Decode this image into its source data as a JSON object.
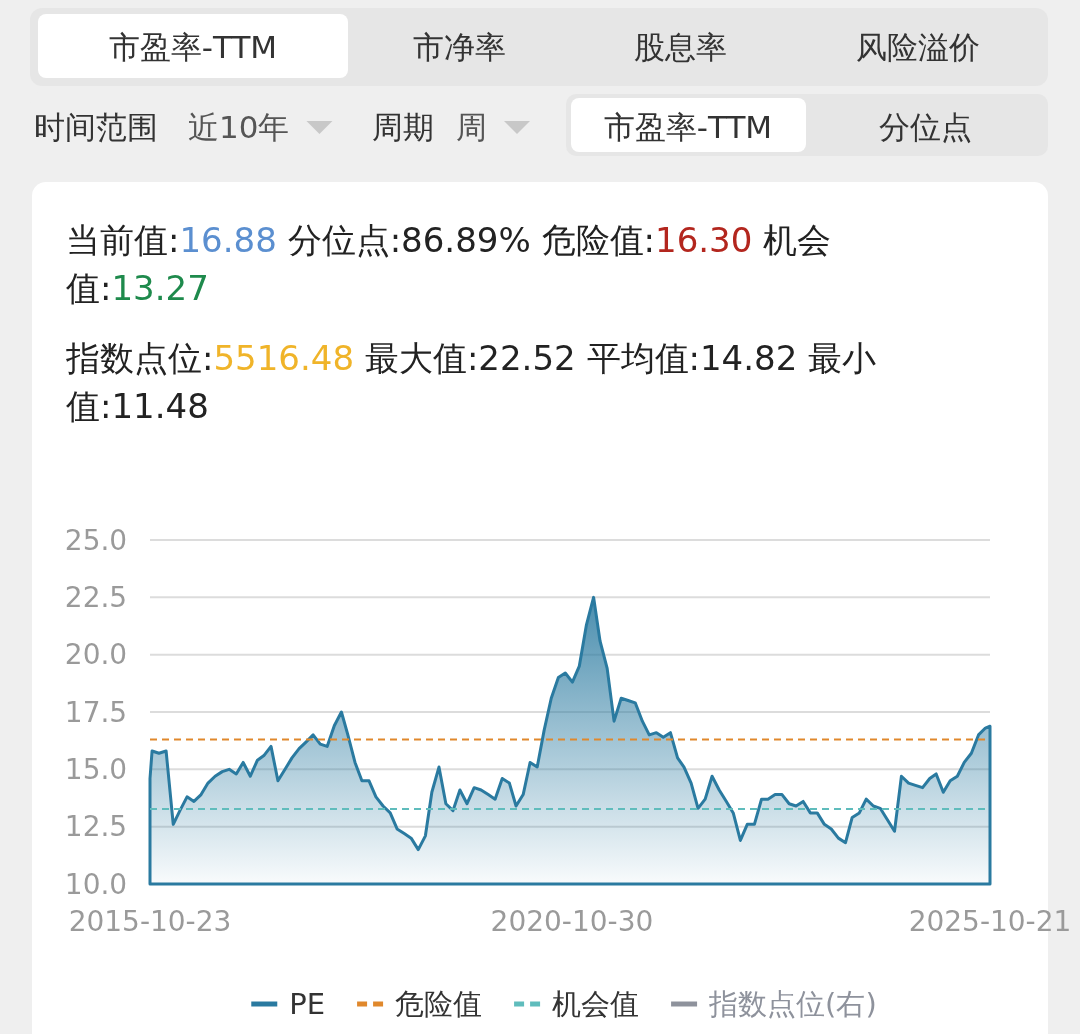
{
  "chart_data": {
    "type": "area",
    "title": "当前值:16.88 分位点:86.89% 危险值:16.30 机会值:13.27",
    "subtitle": "指数点位:5516.48 最大值:22.52 平均值:14.82 最小值:11.48",
    "annotations": [
      "市盈率-TTM",
      "市净率",
      "股息率",
      "风险溢价",
      "时间范围",
      "近10年",
      "周期",
      "周",
      "市盈率-TTM",
      "分位点"
    ],
    "x": [
      "2015-10-23",
      "2015-11",
      "2015-12",
      "2016-01",
      "2016-02",
      "2016-03",
      "2016-04",
      "2016-05",
      "2016-06",
      "2016-07",
      "2016-08",
      "2016-09",
      "2016-10",
      "2016-11",
      "2016-12",
      "2017-01",
      "2017-02",
      "2017-03",
      "2017-04",
      "2017-05",
      "2017-06",
      "2017-07",
      "2017-08",
      "2017-09",
      "2017-10",
      "2017-11",
      "2017-12",
      "2018-01",
      "2018-02",
      "2018-03",
      "2018-04",
      "2018-05",
      "2018-06",
      "2018-07",
      "2018-08",
      "2018-09",
      "2018-10",
      "2018-11",
      "2018-12",
      "2019-01",
      "2019-02",
      "2019-03",
      "2019-04",
      "2019-05",
      "2019-06",
      "2019-07",
      "2019-08",
      "2019-09",
      "2019-10",
      "2019-11",
      "2019-12",
      "2020-01",
      "2020-02",
      "2020-03",
      "2020-04",
      "2020-05",
      "2020-06",
      "2020-07",
      "2020-08",
      "2020-09",
      "2020-10",
      "2020-11",
      "2020-12",
      "2021-01",
      "2021-02",
      "2021-03",
      "2021-04",
      "2021-05",
      "2021-06",
      "2021-07",
      "2021-08",
      "2021-09",
      "2021-10",
      "2021-11",
      "2021-12",
      "2022-01",
      "2022-02",
      "2022-03",
      "2022-04",
      "2022-05",
      "2022-06",
      "2022-07",
      "2022-08",
      "2022-09",
      "2022-10",
      "2022-11",
      "2022-12",
      "2023-01",
      "2023-02",
      "2023-03",
      "2023-04",
      "2023-05",
      "2023-06",
      "2023-07",
      "2023-08",
      "2023-09",
      "2023-10",
      "2023-11",
      "2023-12",
      "2024-01",
      "2024-02",
      "2024-03",
      "2024-04",
      "2024-05",
      "2024-06",
      "2024-07",
      "2024-08",
      "2024-09",
      "2024-10",
      "2024-11",
      "2024-12",
      "2025-01",
      "2025-02",
      "2025-03",
      "2025-04",
      "2025-05",
      "2025-06",
      "2025-07",
      "2025-08",
      "2025-09",
      "2025-10",
      "2025-10-21"
    ],
    "series": [
      {
        "name": "PE",
        "color": "#2a7aa0",
        "values": [
          14.6,
          15.8,
          15.7,
          15.8,
          12.6,
          13.2,
          13.8,
          13.6,
          13.9,
          14.4,
          14.7,
          14.9,
          15.0,
          14.8,
          15.3,
          14.7,
          15.4,
          15.6,
          16.0,
          14.5,
          15.0,
          15.5,
          15.9,
          16.2,
          16.5,
          16.1,
          16.0,
          16.9,
          17.5,
          16.5,
          15.3,
          14.5,
          14.5,
          13.8,
          13.4,
          13.1,
          12.4,
          12.2,
          12.0,
          11.5,
          12.1,
          14.0,
          15.1,
          13.5,
          13.2,
          14.1,
          13.5,
          14.2,
          14.1,
          13.9,
          13.7,
          14.6,
          14.4,
          13.4,
          13.9,
          15.3,
          15.1,
          16.7,
          18.1,
          19.0,
          19.2,
          18.8,
          19.5,
          21.3,
          22.5,
          20.6,
          19.4,
          17.1,
          18.1,
          18.0,
          17.9,
          17.1,
          16.5,
          16.6,
          16.4,
          16.6,
          15.5,
          15.1,
          14.4,
          13.3,
          13.7,
          14.7,
          14.1,
          13.6,
          13.1,
          11.9,
          12.6,
          12.6,
          13.7,
          13.7,
          13.9,
          13.9,
          13.5,
          13.4,
          13.6,
          13.1,
          13.1,
          12.6,
          12.4,
          12.0,
          11.8,
          12.9,
          13.1,
          13.7,
          13.4,
          13.3,
          12.8,
          12.3,
          14.7,
          14.4,
          14.3,
          14.2,
          14.6,
          14.8,
          14.0,
          14.5,
          14.7,
          15.3,
          15.7,
          16.5,
          16.8,
          16.88
        ]
      },
      {
        "name": "指数点位(右)",
        "color": "#8e929c",
        "values": [
          null,
          null,
          null,
          null,
          null,
          null,
          null,
          null,
          null,
          null,
          null,
          null,
          null,
          null,
          null,
          null,
          null,
          null,
          null,
          null,
          null,
          null,
          null,
          null,
          null,
          null,
          null,
          null,
          null,
          null,
          null,
          null,
          null,
          null,
          null,
          null,
          null,
          null,
          null,
          null,
          null,
          null,
          null,
          null,
          null,
          null,
          null,
          null,
          null,
          null,
          null,
          null,
          null,
          null,
          null,
          null,
          null,
          null,
          null,
          null,
          null,
          null,
          null,
          null,
          null,
          null,
          null,
          null,
          null,
          null,
          null,
          null,
          null,
          null,
          null,
          null,
          null,
          null,
          null,
          null,
          null,
          null,
          null,
          null,
          null,
          null,
          null,
          null,
          null,
          null,
          null,
          null,
          null,
          null,
          null,
          null,
          null,
          null,
          null,
          null,
          null,
          null,
          null,
          null,
          null,
          null,
          null,
          null,
          null,
          null,
          null,
          null,
          null,
          null,
          null,
          null,
          null,
          null,
          null,
          null,
          null,
          null
        ]
      }
    ],
    "ref_lines": [
      {
        "axis": "y",
        "value": 16.3,
        "label": "危险值",
        "color": "#e0882c",
        "line_style": "dashed"
      },
      {
        "axis": "y",
        "value": 13.27,
        "label": "机会值",
        "color": "#5fbcbc",
        "line_style": "dashed"
      }
    ],
    "xlim": [
      "2015-10-23",
      "2025-10-21"
    ],
    "xticks": [
      "2015-10-23",
      "2020-10-30",
      "2025-10-21"
    ],
    "ylim": [
      10,
      25
    ],
    "yticks": [
      {
        "value": 10,
        "label": "10.0"
      },
      {
        "value": 12.5,
        "label": "12.5"
      },
      {
        "value": 15,
        "label": "15.0"
      },
      {
        "value": 17.5,
        "label": "17.5"
      },
      {
        "value": 20,
        "label": "20.0"
      },
      {
        "value": 22.5,
        "label": "22.5"
      },
      {
        "value": 25,
        "label": "25.0"
      }
    ],
    "grid": "y",
    "legend": "bottom"
  }
}
